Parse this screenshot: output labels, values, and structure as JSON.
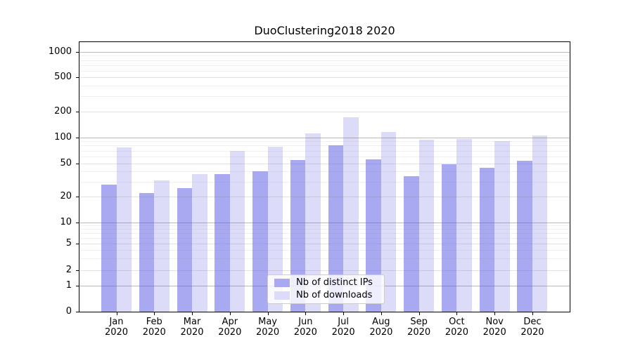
{
  "title": "DuoClustering2018 2020",
  "legend": {
    "items": [
      {
        "label": "Nb of distinct IPs",
        "color": "#a9a9f2"
      },
      {
        "label": "Nb of downloads",
        "color": "#dcdcf8"
      }
    ],
    "position": "lower center"
  },
  "chart_data": {
    "type": "bar",
    "title": "DuoClustering2018 2020",
    "categories": [
      "Jan 2020",
      "Feb 2020",
      "Mar 2020",
      "Apr 2020",
      "May 2020",
      "Jun 2020",
      "Jul 2020",
      "Aug 2020",
      "Sep 2020",
      "Oct 2020",
      "Nov 2020",
      "Dec 2020"
    ],
    "series": [
      {
        "name": "Nb of distinct IPs",
        "color": "#a9a9f2",
        "values": [
          28,
          22,
          25,
          37,
          40,
          54,
          81,
          55,
          35,
          49,
          44,
          53
        ]
      },
      {
        "name": "Nb of downloads",
        "color": "#dcdcf8",
        "values": [
          76,
          31,
          37,
          70,
          77,
          110,
          172,
          115,
          94,
          95,
          91,
          104
        ]
      }
    ],
    "xlabel": "",
    "ylabel": "",
    "yscale": "symlog-asinh (log above ~1, linear near 0)",
    "yticks": [
      0,
      1,
      2,
      5,
      10,
      20,
      50,
      100,
      200,
      500,
      1000
    ],
    "yticks_minor": [
      3,
      4,
      6,
      7,
      8,
      9,
      30,
      40,
      60,
      70,
      80,
      90,
      300,
      400,
      600,
      700,
      800,
      900
    ],
    "ylim": [
      0,
      1300
    ],
    "grid": true,
    "legend_position": "lower center"
  }
}
